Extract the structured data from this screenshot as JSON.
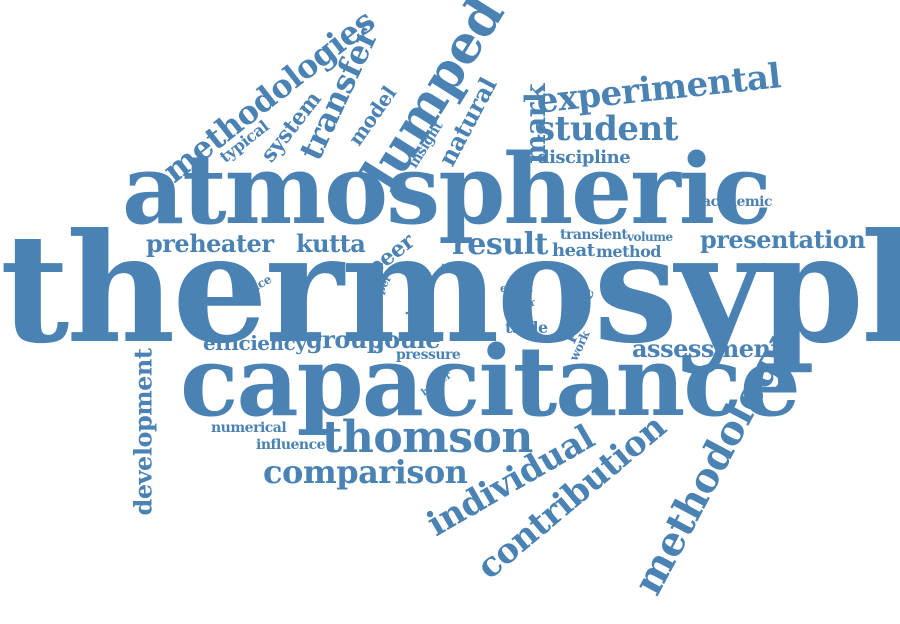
{
  "wordcloud": {
    "color": "#4a82b4",
    "words": {
      "thermosyphon": "thermosyphon",
      "atmospheric": "atmospheric",
      "capacitance": "capacitance",
      "thomson": "thomson",
      "comparison": "comparison",
      "methodology": "methodology",
      "contribution": "contribution",
      "individual": "individual",
      "development": "development",
      "methodologies": "methodologies",
      "transfer": "transfer",
      "system": "system",
      "typical": "typical",
      "model": "model",
      "lumped": "lumped",
      "insight": "insight",
      "natural": "natural",
      "mark": "mark",
      "experimental": "experimental",
      "student": "student",
      "discipline": "discipline",
      "academic": "academic",
      "presentation": "presentation",
      "volume": "volume",
      "transient": "transient",
      "heat": "heat",
      "method": "method",
      "result": "result",
      "peer": "peer",
      "preheater": "preheater",
      "kutta": "kutta",
      "reduce": "reduce",
      "paper": "paper",
      "time": "time",
      "given": "given",
      "fluid": "fluid",
      "effect": "effect",
      "water": "water",
      "table": "table",
      "phase": "phase",
      "work": "work",
      "efficiency": "efficiency",
      "group": "group",
      "joule": "joule",
      "pressure": "pressure",
      "assessment": "assessment",
      "heater": "heater",
      "numerical": "numerical",
      "influence": "influence"
    }
  }
}
